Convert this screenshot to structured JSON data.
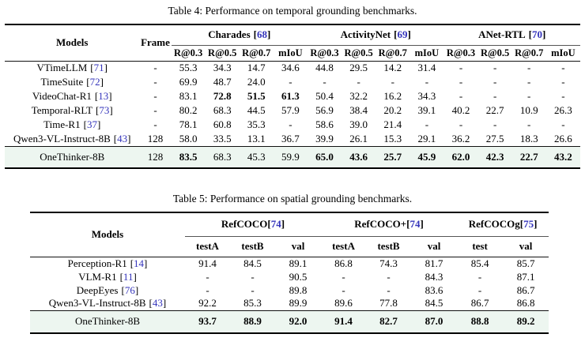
{
  "punct": {
    "open": "[",
    "close": "]"
  },
  "colors": {
    "citation_blue": "#3434bb",
    "highlight_row_bg": "#edf6f0",
    "rule_black": "#000000"
  },
  "table4": {
    "caption": "Table 4: Performance on temporal grounding benchmarks.",
    "col_models": "Models",
    "col_frame": "Frame",
    "metric_labels": [
      "R@0.3",
      "R@0.5",
      "R@0.7",
      "mIoU"
    ],
    "groups": [
      {
        "name": "Charades",
        "cite": "68"
      },
      {
        "name": "ActivityNet",
        "cite": "69"
      },
      {
        "name": "ANet-RTL",
        "cite": "70"
      }
    ],
    "has_frame": true,
    "rows": [
      {
        "model": "VTimeLLM",
        "cite": "71",
        "frame": "-",
        "values": [
          "55.3",
          "34.3",
          "14.7",
          "34.6",
          "44.8",
          "29.5",
          "14.2",
          "31.4",
          "-",
          "-",
          "-",
          "-"
        ],
        "bold": []
      },
      {
        "model": "TimeSuite",
        "cite": "72",
        "frame": "-",
        "values": [
          "69.9",
          "48.7",
          "24.0",
          "-",
          "-",
          "-",
          "-",
          "-",
          "-",
          "-",
          "-",
          "-"
        ],
        "bold": []
      },
      {
        "model": "VideoChat-R1",
        "cite": "13",
        "frame": "-",
        "values": [
          "83.1",
          "72.8",
          "51.5",
          "61.3",
          "50.4",
          "32.2",
          "16.2",
          "34.3",
          "-",
          "-",
          "-",
          "-"
        ],
        "bold": [
          1,
          2,
          3
        ]
      },
      {
        "model": "Temporal-RLT",
        "cite": "73",
        "frame": "-",
        "values": [
          "80.2",
          "68.3",
          "44.5",
          "57.9",
          "56.9",
          "38.4",
          "20.2",
          "39.1",
          "40.2",
          "22.7",
          "10.9",
          "26.3"
        ],
        "bold": []
      },
      {
        "model": "Time-R1",
        "cite": "37",
        "frame": "-",
        "values": [
          "78.1",
          "60.8",
          "35.3",
          "-",
          "58.6",
          "39.0",
          "21.4",
          "-",
          "-",
          "-",
          "-",
          "-"
        ],
        "bold": []
      },
      {
        "model": "Qwen3-VL-Instruct-8B",
        "cite": "43",
        "frame": "128",
        "values": [
          "58.0",
          "33.5",
          "13.1",
          "36.7",
          "39.9",
          "26.1",
          "15.3",
          "29.1",
          "36.2",
          "27.5",
          "18.3",
          "26.6"
        ],
        "bold": []
      }
    ],
    "highlight_row": {
      "model": "OneThinker-8B",
      "cite": "",
      "frame": "128",
      "values": [
        "83.5",
        "68.3",
        "45.3",
        "59.9",
        "65.0",
        "43.6",
        "25.7",
        "45.9",
        "62.0",
        "42.3",
        "22.7",
        "43.2"
      ],
      "bold": [
        0,
        4,
        5,
        6,
        7,
        8,
        9,
        10,
        11
      ]
    }
  },
  "table5": {
    "caption": "Table 5: Performance on spatial grounding benchmarks.",
    "col_models": "Models",
    "groups": [
      {
        "name": "RefCOCO",
        "cite": "74",
        "metrics": [
          "testA",
          "testB",
          "val"
        ]
      },
      {
        "name": "RefCOCO+",
        "cite": "74",
        "metrics": [
          "testA",
          "testB",
          "val"
        ]
      },
      {
        "name": "RefCOCOg",
        "cite": "75",
        "metrics": [
          "test",
          "val"
        ]
      }
    ],
    "has_frame": false,
    "rows": [
      {
        "model": "Perception-R1",
        "cite": "14",
        "values": [
          "91.4",
          "84.5",
          "89.1",
          "86.8",
          "74.3",
          "81.7",
          "85.4",
          "85.7"
        ],
        "bold": []
      },
      {
        "model": "VLM-R1",
        "cite": "11",
        "values": [
          "-",
          "-",
          "90.5",
          "-",
          "-",
          "84.3",
          "-",
          "87.1"
        ],
        "bold": []
      },
      {
        "model": "DeepEyes",
        "cite": "76",
        "values": [
          "-",
          "-",
          "89.8",
          "-",
          "-",
          "83.6",
          "-",
          "86.7"
        ],
        "bold": []
      },
      {
        "model": "Qwen3-VL-Instruct-8B",
        "cite": "43",
        "values": [
          "92.2",
          "85.3",
          "89.9",
          "89.6",
          "77.8",
          "84.5",
          "86.7",
          "86.8"
        ],
        "bold": []
      }
    ],
    "highlight_row": {
      "model": "OneThinker-8B",
      "cite": "",
      "values": [
        "93.7",
        "88.9",
        "92.0",
        "91.4",
        "82.7",
        "87.0",
        "88.8",
        "89.2"
      ],
      "bold": [
        0,
        1,
        2,
        3,
        4,
        5,
        6,
        7
      ]
    }
  }
}
